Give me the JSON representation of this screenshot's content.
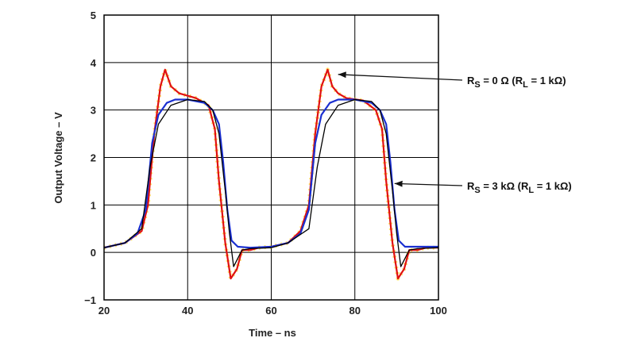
{
  "chart_data": {
    "type": "line",
    "xlabel": "Time – ns",
    "ylabel": "Output Voltage – V",
    "xlim": [
      20,
      100
    ],
    "ylim": [
      -1,
      5
    ],
    "xticks": [
      "20",
      "40",
      "60",
      "80",
      "100"
    ],
    "yticks": [
      "−1",
      "0",
      "1",
      "2",
      "3",
      "4",
      "5"
    ],
    "grid": true,
    "series": [
      {
        "color": "#e01010",
        "x": [
          20,
          25,
          29,
          30.5,
          32,
          33.5,
          34.6,
          36,
          38,
          42,
          45,
          46.5,
          47.5,
          49,
          50.3,
          51.8,
          53,
          55,
          57,
          60,
          64,
          67,
          69,
          70.5,
          72,
          73.5,
          74.6,
          76,
          78,
          82,
          85,
          86.5,
          87.5,
          89,
          90.3,
          91.8,
          93,
          95,
          97,
          100
        ],
        "y": [
          0.1,
          0.2,
          0.45,
          1.0,
          2.5,
          3.5,
          3.85,
          3.5,
          3.35,
          3.25,
          3.1,
          2.6,
          1.5,
          0.2,
          -0.55,
          -0.35,
          0.05,
          0.05,
          0.1,
          0.12,
          0.2,
          0.45,
          1.0,
          2.5,
          3.5,
          3.85,
          3.5,
          3.35,
          3.25,
          3.2,
          3.0,
          2.6,
          1.5,
          0.2,
          -0.55,
          -0.35,
          0.05,
          0.05,
          0.1,
          0.1
        ]
      },
      {
        "color": "#1a2fd0",
        "x": [
          20,
          25,
          28,
          30,
          31.5,
          33,
          35,
          37,
          40,
          44,
          46,
          47.5,
          48.5,
          49.5,
          50.5,
          52,
          55,
          60,
          64,
          67,
          69,
          70.5,
          72,
          74,
          76,
          80,
          84,
          86,
          87.5,
          88.5,
          89.5,
          90.5,
          92,
          95,
          100
        ],
        "y": [
          0.1,
          0.2,
          0.4,
          0.9,
          2.3,
          2.9,
          3.15,
          3.22,
          3.22,
          3.15,
          3.0,
          2.7,
          1.9,
          0.9,
          0.25,
          0.12,
          0.1,
          0.12,
          0.2,
          0.4,
          0.9,
          2.3,
          2.9,
          3.15,
          3.22,
          3.22,
          3.15,
          3.0,
          2.7,
          1.9,
          0.9,
          0.25,
          0.12,
          0.12,
          0.12
        ]
      },
      {
        "color": "#000000",
        "x": [
          20,
          25,
          29,
          31,
          33,
          36,
          40,
          44,
          46,
          47.5,
          49,
          50,
          51,
          53,
          55,
          60,
          64,
          69,
          71,
          73,
          76,
          80,
          84,
          86,
          87.5,
          89,
          90,
          91,
          93,
          95,
          100
        ],
        "y": [
          0.1,
          0.2,
          0.5,
          1.8,
          2.7,
          3.1,
          3.22,
          3.18,
          3.0,
          2.5,
          1.3,
          0.4,
          -0.3,
          0.05,
          0.08,
          0.1,
          0.2,
          0.5,
          1.8,
          2.7,
          3.1,
          3.22,
          3.18,
          3.0,
          2.5,
          1.3,
          0.4,
          -0.3,
          0.05,
          0.08,
          0.1
        ]
      },
      {
        "color": "#ffd400",
        "x": [
          20,
          25,
          29,
          30.5,
          32,
          33.5,
          34.6,
          36,
          38,
          42,
          45,
          46.5,
          47.5,
          49,
          50.3,
          51.8,
          53,
          55,
          57,
          60,
          64,
          67,
          69,
          70.5,
          72,
          73.5,
          74.6,
          76,
          78,
          82,
          85,
          86.5,
          87.5,
          89,
          90.3,
          91.8,
          93,
          95,
          97,
          100
        ],
        "y": [
          0.1,
          0.2,
          0.45,
          1.0,
          2.5,
          3.5,
          3.85,
          3.5,
          3.35,
          3.25,
          3.1,
          2.6,
          1.5,
          0.2,
          -0.55,
          -0.35,
          0.05,
          0.05,
          0.1,
          0.12,
          0.2,
          0.45,
          1.0,
          2.5,
          3.5,
          3.85,
          3.5,
          3.35,
          3.25,
          3.2,
          3.0,
          2.6,
          1.5,
          0.2,
          -0.55,
          -0.35,
          0.05,
          0.05,
          0.1,
          0.1
        ]
      }
    ],
    "annotations": [
      {
        "text": "RS = 0 Ω (RL = 1 kΩ)",
        "target_x": 76,
        "target_y": 3.75
      },
      {
        "text": "RS = 3 kΩ (RL = 1 kΩ)",
        "target_x": 89.5,
        "target_y": 1.45
      }
    ]
  },
  "annotations_text": [
    {
      "r_main": "R",
      "r_sub": "S",
      "mid": " = 0 Ω (R",
      "l_sub": "L",
      "tail": " = 1 kΩ)"
    },
    {
      "r_main": "R",
      "r_sub": "S",
      "mid": " = 3 kΩ (R",
      "l_sub": "L",
      "tail": " = 1 kΩ)"
    }
  ]
}
